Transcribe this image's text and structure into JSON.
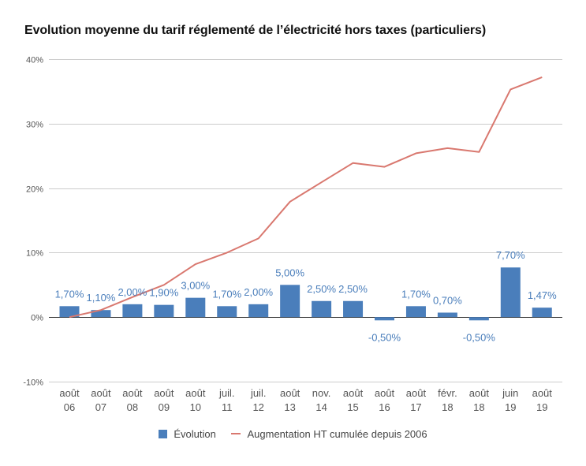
{
  "chart_data": {
    "type": "bar",
    "title": "Evolution moyenne du tarif réglementé de l’électricité hors taxes (particuliers)",
    "categories": [
      [
        "août",
        "06"
      ],
      [
        "août",
        "07"
      ],
      [
        "août",
        "08"
      ],
      [
        "août",
        "09"
      ],
      [
        "août",
        "10"
      ],
      [
        "juil.",
        "11"
      ],
      [
        "juil.",
        "12"
      ],
      [
        "août",
        "13"
      ],
      [
        "nov.",
        "14"
      ],
      [
        "août",
        "15"
      ],
      [
        "août",
        "16"
      ],
      [
        "août",
        "17"
      ],
      [
        "févr.",
        "18"
      ],
      [
        "août",
        "18"
      ],
      [
        "juin",
        "19"
      ],
      [
        "août",
        "19"
      ]
    ],
    "yticks": [
      "-10%",
      "0%",
      "10%",
      "20%",
      "30%",
      "40%"
    ],
    "ylim": [
      -10,
      40
    ],
    "grid": true,
    "legend_position": "bottom",
    "series": [
      {
        "name": "Évolution",
        "type": "bar",
        "color": "#4a7ebb",
        "values": [
          1.7,
          1.1,
          2.0,
          1.9,
          3.0,
          1.7,
          2.0,
          5.0,
          2.5,
          2.5,
          -0.5,
          1.7,
          0.7,
          -0.5,
          7.7,
          1.47
        ],
        "labels": [
          "1,70%",
          "1,10%",
          "2,00%",
          "1,90%",
          "3,00%",
          "1,70%",
          "2,00%",
          "5,00%",
          "2,50%",
          "2,50%",
          "-0,50%",
          "1,70%",
          "0,70%",
          "-0,50%",
          "7,70%",
          "1,47%"
        ]
      },
      {
        "name": "Augmentation HT cumulée depuis 2006",
        "type": "line",
        "color": "#d9786f",
        "values": [
          0,
          1.1,
          3.1,
          5.0,
          8.2,
          10.0,
          12.2,
          17.9,
          20.9,
          23.9,
          23.3,
          25.4,
          26.2,
          25.6,
          35.3,
          37.2
        ]
      }
    ]
  }
}
